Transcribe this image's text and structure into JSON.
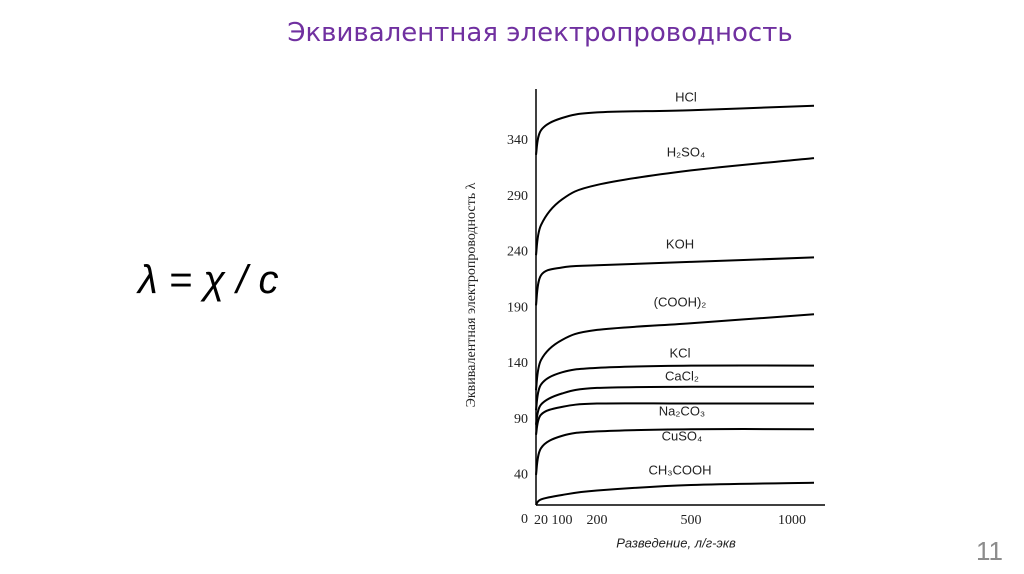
{
  "title": "Эквивалентная электропроводность",
  "formula": "λ = χ / c",
  "page_number": 11,
  "chart_data": {
    "type": "line",
    "y_label": "Эквивалентная электропроводность λ",
    "x_label": "Разведение, л/г-экв",
    "x": [
      0,
      20,
      100,
      200,
      500,
      1100
    ],
    "xlim": [
      0,
      1150
    ],
    "xticks": [
      20,
      100,
      200,
      500,
      1000
    ],
    "ylim": [
      0,
      390
    ],
    "yticks": [
      0,
      40,
      90,
      140,
      190,
      240,
      290,
      340
    ],
    "series": [
      {
        "name": "HCl",
        "color": "#000000",
        "values": [
          331,
          353,
          364,
          369,
          371,
          375
        ]
      },
      {
        "name": "H₂SO₄",
        "color": "#000000",
        "values": [
          241,
          268,
          291,
          304,
          317,
          328
        ]
      },
      {
        "name": "KOH",
        "color": "#000000",
        "values": [
          196,
          223,
          230,
          232,
          235,
          239
        ]
      },
      {
        "name": "(COOH)₂",
        "color": "#000000",
        "values": [
          120,
          147,
          165,
          174,
          180,
          188
        ]
      },
      {
        "name": "KCl",
        "color": "#000000",
        "values": [
          102,
          125,
          136,
          140,
          142,
          142
        ]
      },
      {
        "name": "CaCl₂",
        "color": "#000000",
        "values": [
          89,
          107,
          117,
          122,
          123,
          123
        ]
      },
      {
        "name": "Na₂CO₃",
        "color": "#000000",
        "values": [
          80,
          98,
          105,
          108,
          108,
          108
        ]
      },
      {
        "name": "CuSO₄",
        "color": "#000000",
        "values": [
          44,
          68,
          79,
          83,
          85,
          85
        ]
      },
      {
        "name": "CH₃COOH",
        "color": "#000000",
        "values": [
          17,
          22,
          26,
          30,
          35,
          37
        ]
      }
    ]
  }
}
